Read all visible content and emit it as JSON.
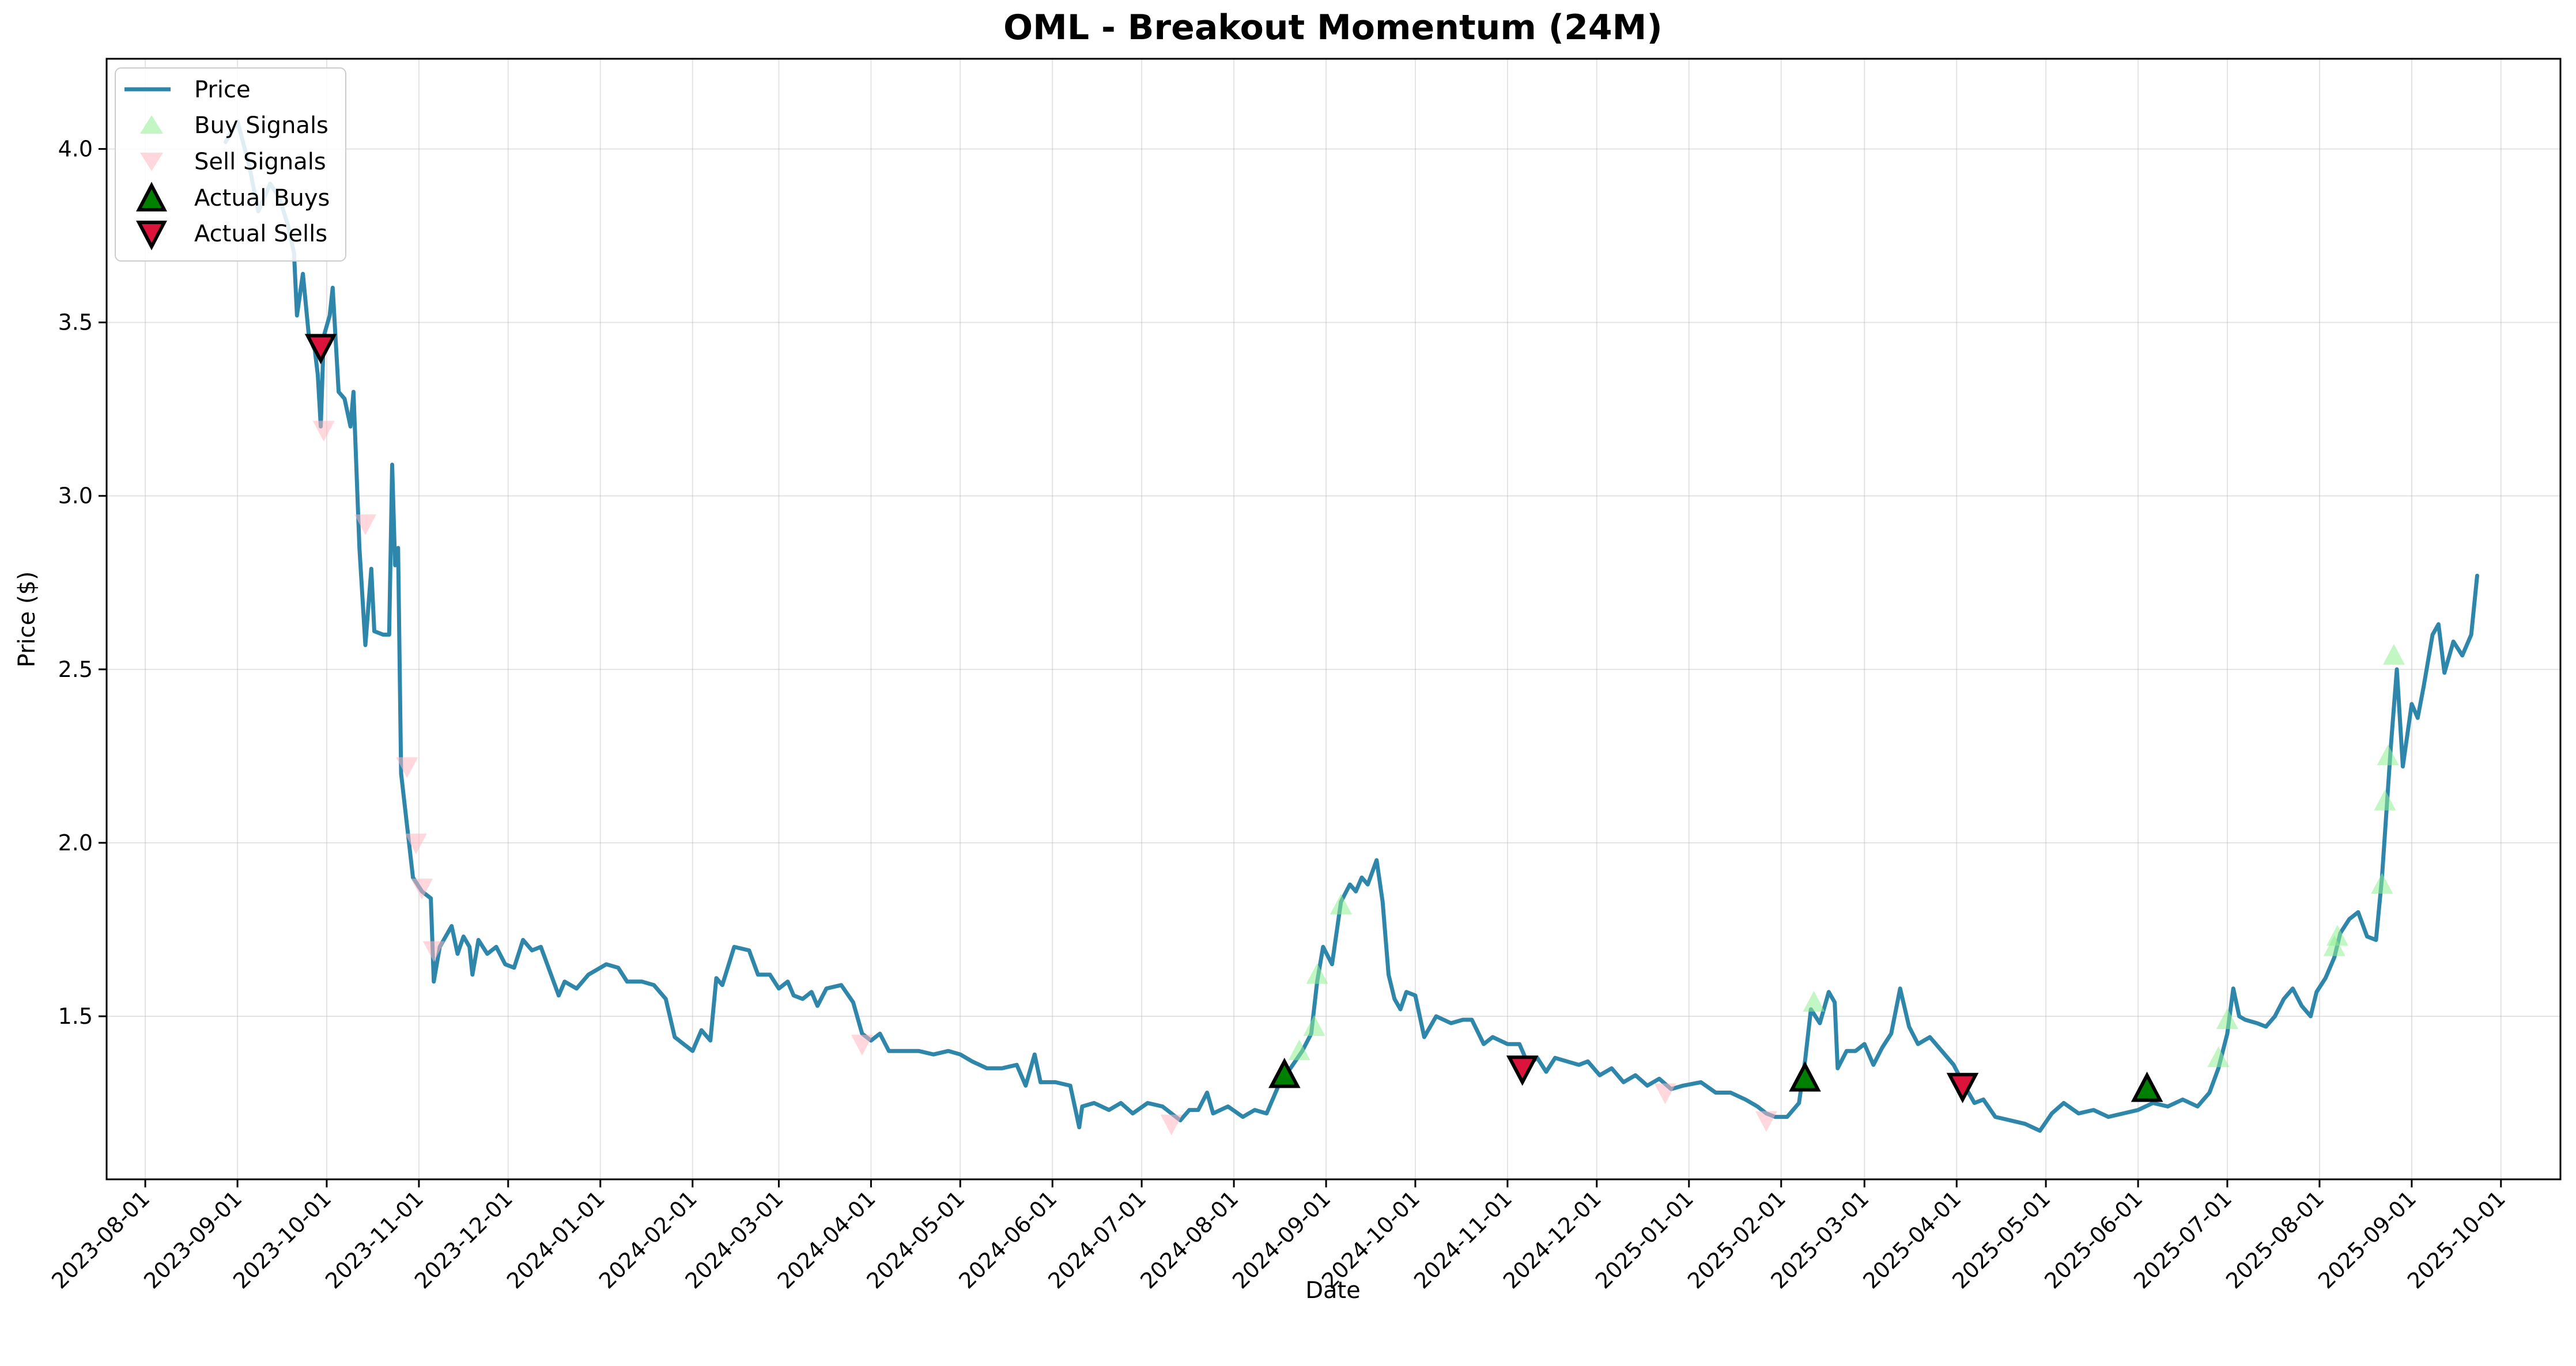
{
  "chart_data": {
    "type": "line",
    "title": "OML - Breakout Momentum (24M)",
    "xlabel": "Date",
    "ylabel": "Price ($)",
    "grid": true,
    "legend_position": "upper-left",
    "xlim": [
      "2023-07-19",
      "2025-10-21"
    ],
    "ylim": [
      1.03,
      4.26
    ],
    "x_ticks": [
      "2023-08-01",
      "2023-09-01",
      "2023-10-01",
      "2023-11-01",
      "2023-12-01",
      "2024-01-01",
      "2024-02-01",
      "2024-03-01",
      "2024-04-01",
      "2024-05-01",
      "2024-06-01",
      "2024-07-01",
      "2024-08-01",
      "2024-09-01",
      "2024-10-01",
      "2024-11-01",
      "2024-12-01",
      "2025-01-01",
      "2025-02-01",
      "2025-03-01",
      "2025-04-01",
      "2025-05-01",
      "2025-06-01",
      "2025-07-01",
      "2025-08-01",
      "2025-09-01",
      "2025-10-01"
    ],
    "y_ticks": [
      "1.5",
      "2.0",
      "2.5",
      "3.0",
      "3.5",
      "4.0"
    ],
    "colors": {
      "price": "#2e86ab",
      "buy_signal": "#90ee90",
      "sell_signal": "#ffb6c1",
      "actual_buy": "#008000",
      "actual_sell": "#dc143c"
    },
    "legend": [
      "Price",
      "Buy Signals",
      "Sell Signals",
      "Actual Buys",
      "Actual Sells"
    ],
    "series": [
      {
        "name": "Price",
        "points": [
          [
            "2023-08-28",
            4.02
          ],
          [
            "2023-09-01",
            4.08
          ],
          [
            "2023-09-05",
            3.95
          ],
          [
            "2023-09-08",
            3.82
          ],
          [
            "2023-09-12",
            3.9
          ],
          [
            "2023-09-15",
            3.86
          ],
          [
            "2023-09-18",
            3.78
          ],
          [
            "2023-09-20",
            3.7
          ],
          [
            "2023-09-21",
            3.52
          ],
          [
            "2023-09-23",
            3.64
          ],
          [
            "2023-09-25",
            3.46
          ],
          [
            "2023-09-27",
            3.42
          ],
          [
            "2023-09-28",
            3.35
          ],
          [
            "2023-09-29",
            3.2
          ],
          [
            "2023-09-30",
            3.46
          ],
          [
            "2023-10-02",
            3.52
          ],
          [
            "2023-10-03",
            3.6
          ],
          [
            "2023-10-05",
            3.3
          ],
          [
            "2023-10-07",
            3.28
          ],
          [
            "2023-10-09",
            3.2
          ],
          [
            "2023-10-10",
            3.3
          ],
          [
            "2023-10-12",
            2.85
          ],
          [
            "2023-10-14",
            2.57
          ],
          [
            "2023-10-16",
            2.79
          ],
          [
            "2023-10-17",
            2.61
          ],
          [
            "2023-10-20",
            2.6
          ],
          [
            "2023-10-22",
            2.6
          ],
          [
            "2023-10-23",
            3.09
          ],
          [
            "2023-10-24",
            2.8
          ],
          [
            "2023-10-25",
            2.85
          ],
          [
            "2023-10-26",
            2.2
          ],
          [
            "2023-10-28",
            2.05
          ],
          [
            "2023-10-30",
            1.9
          ],
          [
            "2023-11-02",
            1.86
          ],
          [
            "2023-11-05",
            1.84
          ],
          [
            "2023-11-06",
            1.6
          ],
          [
            "2023-11-08",
            1.7
          ],
          [
            "2023-11-12",
            1.76
          ],
          [
            "2023-11-14",
            1.68
          ],
          [
            "2023-11-16",
            1.73
          ],
          [
            "2023-11-18",
            1.7
          ],
          [
            "2023-11-19",
            1.62
          ],
          [
            "2023-11-21",
            1.72
          ],
          [
            "2023-11-24",
            1.68
          ],
          [
            "2023-11-27",
            1.7
          ],
          [
            "2023-11-30",
            1.65
          ],
          [
            "2023-12-03",
            1.64
          ],
          [
            "2023-12-06",
            1.72
          ],
          [
            "2023-12-09",
            1.69
          ],
          [
            "2023-12-12",
            1.7
          ],
          [
            "2023-12-15",
            1.63
          ],
          [
            "2023-12-18",
            1.56
          ],
          [
            "2023-12-20",
            1.6
          ],
          [
            "2023-12-24",
            1.58
          ],
          [
            "2023-12-28",
            1.62
          ],
          [
            "2024-01-03",
            1.65
          ],
          [
            "2024-01-07",
            1.64
          ],
          [
            "2024-01-10",
            1.6
          ],
          [
            "2024-01-15",
            1.6
          ],
          [
            "2024-01-19",
            1.59
          ],
          [
            "2024-01-23",
            1.55
          ],
          [
            "2024-01-26",
            1.44
          ],
          [
            "2024-01-29",
            1.42
          ],
          [
            "2024-02-01",
            1.4
          ],
          [
            "2024-02-04",
            1.46
          ],
          [
            "2024-02-07",
            1.43
          ],
          [
            "2024-02-09",
            1.61
          ],
          [
            "2024-02-11",
            1.59
          ],
          [
            "2024-02-15",
            1.7
          ],
          [
            "2024-02-20",
            1.69
          ],
          [
            "2024-02-23",
            1.62
          ],
          [
            "2024-02-27",
            1.62
          ],
          [
            "2024-03-01",
            1.58
          ],
          [
            "2024-03-04",
            1.6
          ],
          [
            "2024-03-06",
            1.56
          ],
          [
            "2024-03-09",
            1.55
          ],
          [
            "2024-03-12",
            1.57
          ],
          [
            "2024-03-14",
            1.53
          ],
          [
            "2024-03-17",
            1.58
          ],
          [
            "2024-03-22",
            1.59
          ],
          [
            "2024-03-26",
            1.54
          ],
          [
            "2024-03-29",
            1.45
          ],
          [
            "2024-04-01",
            1.43
          ],
          [
            "2024-04-04",
            1.45
          ],
          [
            "2024-04-07",
            1.4
          ],
          [
            "2024-04-12",
            1.4
          ],
          [
            "2024-04-17",
            1.4
          ],
          [
            "2024-04-22",
            1.39
          ],
          [
            "2024-04-27",
            1.4
          ],
          [
            "2024-05-01",
            1.39
          ],
          [
            "2024-05-05",
            1.37
          ],
          [
            "2024-05-10",
            1.35
          ],
          [
            "2024-05-15",
            1.35
          ],
          [
            "2024-05-20",
            1.36
          ],
          [
            "2024-05-23",
            1.3
          ],
          [
            "2024-05-26",
            1.39
          ],
          [
            "2024-05-28",
            1.31
          ],
          [
            "2024-06-02",
            1.31
          ],
          [
            "2024-06-07",
            1.3
          ],
          [
            "2024-06-09",
            1.22
          ],
          [
            "2024-06-10",
            1.18
          ],
          [
            "2024-06-11",
            1.24
          ],
          [
            "2024-06-15",
            1.25
          ],
          [
            "2024-06-20",
            1.23
          ],
          [
            "2024-06-24",
            1.25
          ],
          [
            "2024-06-28",
            1.22
          ],
          [
            "2024-07-03",
            1.25
          ],
          [
            "2024-07-08",
            1.24
          ],
          [
            "2024-07-11",
            1.22
          ],
          [
            "2024-07-14",
            1.2
          ],
          [
            "2024-07-17",
            1.23
          ],
          [
            "2024-07-20",
            1.23
          ],
          [
            "2024-07-23",
            1.28
          ],
          [
            "2024-07-25",
            1.22
          ],
          [
            "2024-07-30",
            1.24
          ],
          [
            "2024-08-04",
            1.21
          ],
          [
            "2024-08-08",
            1.23
          ],
          [
            "2024-08-12",
            1.22
          ],
          [
            "2024-08-17",
            1.32
          ],
          [
            "2024-08-20",
            1.35
          ],
          [
            "2024-08-24",
            1.4
          ],
          [
            "2024-08-27",
            1.45
          ],
          [
            "2024-08-29",
            1.6
          ],
          [
            "2024-08-31",
            1.7
          ],
          [
            "2024-09-03",
            1.65
          ],
          [
            "2024-09-06",
            1.83
          ],
          [
            "2024-09-09",
            1.88
          ],
          [
            "2024-09-11",
            1.86
          ],
          [
            "2024-09-13",
            1.9
          ],
          [
            "2024-09-15",
            1.88
          ],
          [
            "2024-09-18",
            1.95
          ],
          [
            "2024-09-20",
            1.83
          ],
          [
            "2024-09-22",
            1.62
          ],
          [
            "2024-09-24",
            1.55
          ],
          [
            "2024-09-26",
            1.52
          ],
          [
            "2024-09-28",
            1.57
          ],
          [
            "2024-10-01",
            1.56
          ],
          [
            "2024-10-04",
            1.44
          ],
          [
            "2024-10-08",
            1.5
          ],
          [
            "2024-10-13",
            1.48
          ],
          [
            "2024-10-17",
            1.49
          ],
          [
            "2024-10-20",
            1.49
          ],
          [
            "2024-10-24",
            1.42
          ],
          [
            "2024-10-27",
            1.44
          ],
          [
            "2024-11-01",
            1.42
          ],
          [
            "2024-11-05",
            1.42
          ],
          [
            "2024-11-08",
            1.36
          ],
          [
            "2024-11-11",
            1.38
          ],
          [
            "2024-11-14",
            1.34
          ],
          [
            "2024-11-17",
            1.38
          ],
          [
            "2024-11-21",
            1.37
          ],
          [
            "2024-11-25",
            1.36
          ],
          [
            "2024-11-28",
            1.37
          ],
          [
            "2024-12-02",
            1.33
          ],
          [
            "2024-12-06",
            1.35
          ],
          [
            "2024-12-10",
            1.31
          ],
          [
            "2024-12-14",
            1.33
          ],
          [
            "2024-12-18",
            1.3
          ],
          [
            "2024-12-22",
            1.32
          ],
          [
            "2024-12-26",
            1.29
          ],
          [
            "2024-12-30",
            1.3
          ],
          [
            "2025-01-05",
            1.31
          ],
          [
            "2025-01-10",
            1.28
          ],
          [
            "2025-01-15",
            1.28
          ],
          [
            "2025-01-20",
            1.26
          ],
          [
            "2025-01-24",
            1.24
          ],
          [
            "2025-01-27",
            1.22
          ],
          [
            "2025-01-30",
            1.21
          ],
          [
            "2025-02-03",
            1.21
          ],
          [
            "2025-02-07",
            1.25
          ],
          [
            "2025-02-09",
            1.37
          ],
          [
            "2025-02-11",
            1.52
          ],
          [
            "2025-02-14",
            1.48
          ],
          [
            "2025-02-17",
            1.57
          ],
          [
            "2025-02-19",
            1.54
          ],
          [
            "2025-02-20",
            1.35
          ],
          [
            "2025-02-23",
            1.4
          ],
          [
            "2025-02-26",
            1.4
          ],
          [
            "2025-03-01",
            1.42
          ],
          [
            "2025-03-04",
            1.36
          ],
          [
            "2025-03-07",
            1.41
          ],
          [
            "2025-03-10",
            1.45
          ],
          [
            "2025-03-13",
            1.58
          ],
          [
            "2025-03-16",
            1.47
          ],
          [
            "2025-03-19",
            1.42
          ],
          [
            "2025-03-23",
            1.44
          ],
          [
            "2025-03-27",
            1.4
          ],
          [
            "2025-03-31",
            1.36
          ],
          [
            "2025-04-03",
            1.31
          ],
          [
            "2025-04-07",
            1.25
          ],
          [
            "2025-04-10",
            1.26
          ],
          [
            "2025-04-14",
            1.21
          ],
          [
            "2025-04-19",
            1.2
          ],
          [
            "2025-04-24",
            1.19
          ],
          [
            "2025-04-29",
            1.17
          ],
          [
            "2025-05-03",
            1.22
          ],
          [
            "2025-05-07",
            1.25
          ],
          [
            "2025-05-12",
            1.22
          ],
          [
            "2025-05-17",
            1.23
          ],
          [
            "2025-05-22",
            1.21
          ],
          [
            "2025-05-27",
            1.22
          ],
          [
            "2025-06-01",
            1.23
          ],
          [
            "2025-06-06",
            1.25
          ],
          [
            "2025-06-11",
            1.24
          ],
          [
            "2025-06-16",
            1.26
          ],
          [
            "2025-06-21",
            1.24
          ],
          [
            "2025-06-25",
            1.28
          ],
          [
            "2025-06-28",
            1.35
          ],
          [
            "2025-07-01",
            1.45
          ],
          [
            "2025-07-03",
            1.58
          ],
          [
            "2025-07-05",
            1.5
          ],
          [
            "2025-07-07",
            1.49
          ],
          [
            "2025-07-11",
            1.48
          ],
          [
            "2025-07-14",
            1.47
          ],
          [
            "2025-07-17",
            1.5
          ],
          [
            "2025-07-20",
            1.55
          ],
          [
            "2025-07-23",
            1.58
          ],
          [
            "2025-07-26",
            1.53
          ],
          [
            "2025-07-29",
            1.5
          ],
          [
            "2025-07-31",
            1.57
          ],
          [
            "2025-08-03",
            1.61
          ],
          [
            "2025-08-06",
            1.67
          ],
          [
            "2025-08-08",
            1.74
          ],
          [
            "2025-08-11",
            1.78
          ],
          [
            "2025-08-14",
            1.8
          ],
          [
            "2025-08-17",
            1.73
          ],
          [
            "2025-08-20",
            1.72
          ],
          [
            "2025-08-22",
            1.9
          ],
          [
            "2025-08-25",
            2.28
          ],
          [
            "2025-08-27",
            2.5
          ],
          [
            "2025-08-29",
            2.22
          ],
          [
            "2025-09-01",
            2.4
          ],
          [
            "2025-09-03",
            2.36
          ],
          [
            "2025-09-05",
            2.45
          ],
          [
            "2025-09-08",
            2.6
          ],
          [
            "2025-09-10",
            2.63
          ],
          [
            "2025-09-12",
            2.49
          ],
          [
            "2025-09-15",
            2.58
          ],
          [
            "2025-09-18",
            2.54
          ],
          [
            "2025-09-21",
            2.6
          ],
          [
            "2025-09-23",
            2.77
          ]
        ]
      },
      {
        "name": "Buy Signals",
        "points": [
          [
            "2024-08-23",
            1.4
          ],
          [
            "2024-08-28",
            1.47
          ],
          [
            "2024-08-29",
            1.62
          ],
          [
            "2024-09-06",
            1.82
          ],
          [
            "2025-02-12",
            1.54
          ],
          [
            "2025-06-28",
            1.38
          ],
          [
            "2025-07-01",
            1.49
          ],
          [
            "2025-08-06",
            1.7
          ],
          [
            "2025-08-07",
            1.73
          ],
          [
            "2025-08-22",
            1.88
          ],
          [
            "2025-08-23",
            2.12
          ],
          [
            "2025-08-24",
            2.25
          ],
          [
            "2025-08-26",
            2.54
          ]
        ]
      },
      {
        "name": "Sell Signals",
        "points": [
          [
            "2023-09-30",
            3.19
          ],
          [
            "2023-10-14",
            2.92
          ],
          [
            "2023-10-28",
            2.22
          ],
          [
            "2023-10-31",
            2.0
          ],
          [
            "2023-11-02",
            1.87
          ],
          [
            "2023-11-06",
            1.69
          ],
          [
            "2024-03-29",
            1.42
          ],
          [
            "2024-07-11",
            1.19
          ],
          [
            "2024-12-24",
            1.28
          ],
          [
            "2025-01-27",
            1.2
          ]
        ]
      },
      {
        "name": "Actual Buys",
        "points": [
          [
            "2024-08-18",
            1.33
          ],
          [
            "2025-02-09",
            1.32
          ],
          [
            "2025-06-04",
            1.29
          ]
        ]
      },
      {
        "name": "Actual Sells",
        "points": [
          [
            "2023-09-29",
            3.43
          ],
          [
            "2024-11-06",
            1.35
          ],
          [
            "2025-04-03",
            1.3
          ]
        ]
      }
    ]
  }
}
